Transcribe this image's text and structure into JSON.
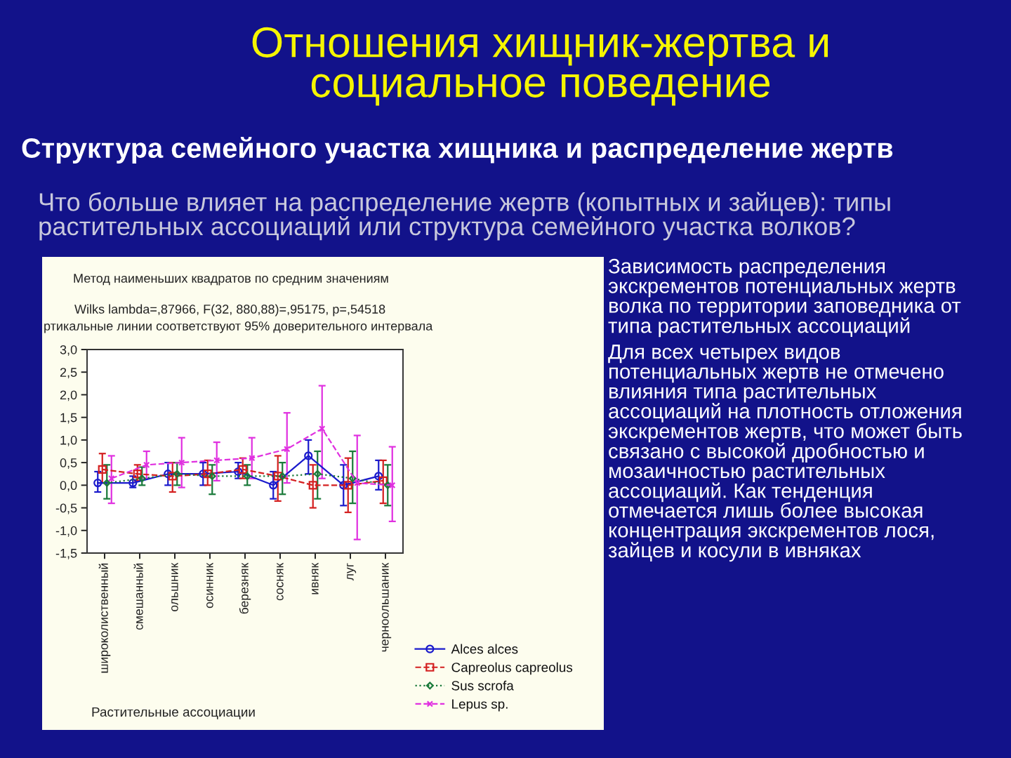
{
  "chart_data": {
    "type": "line",
    "title": "Отношения хищник-жертва и\nсоциальное поведение",
    "subtitle": "Структура семейного участка хищника и распределение жертв",
    "xlabel": "Растительные ассоциации",
    "categories": [
      "широколиственный",
      "смешанный",
      "ольшник",
      "осинник",
      "березняк",
      "сосняк",
      "ивняк",
      "луг",
      "черноольшаник"
    ],
    "ylim": [
      -1.5,
      3.0
    ],
    "yticks": [
      {
        "value": -1.5,
        "label": "-1,5"
      },
      {
        "value": -1.0,
        "label": "-1,0"
      },
      {
        "value": -0.5,
        "label": "-0,5"
      },
      {
        "value": 0.0,
        "label": "0,0"
      },
      {
        "value": 0.5,
        "label": "0,5"
      },
      {
        "value": 1.0,
        "label": "1,0"
      },
      {
        "value": 1.5,
        "label": "1,5"
      },
      {
        "value": 2.0,
        "label": "2,0"
      },
      {
        "value": 2.5,
        "label": "2,5"
      },
      {
        "value": 3.0,
        "label": "3,0"
      }
    ],
    "legend": "bottom right",
    "series": [
      {
        "name": "Alces alces",
        "color": "#1a1acc",
        "marker": "circle",
        "line_style": "solid",
        "values": [
          0.05,
          0.05,
          0.25,
          0.25,
          0.3,
          0.0,
          0.65,
          0.0,
          0.2
        ],
        "errors": [
          [
            -0.15,
            0.3
          ],
          [
            -0.05,
            0.2
          ],
          [
            0.0,
            0.5
          ],
          [
            0.0,
            0.5
          ],
          [
            0.15,
            0.5
          ],
          [
            -0.3,
            0.3
          ],
          [
            0.25,
            1.0
          ],
          [
            -0.45,
            0.45
          ],
          [
            -0.1,
            0.55
          ]
        ]
      },
      {
        "name": "Capreolus capreolus",
        "color": "#d42020",
        "marker": "square",
        "line_style": "dashed",
        "values": [
          0.35,
          0.25,
          0.2,
          0.25,
          0.35,
          0.2,
          0.0,
          0.0,
          0.1
        ],
        "errors": [
          [
            0.05,
            0.7
          ],
          [
            0.1,
            0.45
          ],
          [
            -0.15,
            0.5
          ],
          [
            0.0,
            0.55
          ],
          [
            0.15,
            0.6
          ],
          [
            -0.35,
            0.65
          ],
          [
            -0.5,
            0.45
          ],
          [
            -0.6,
            0.6
          ],
          [
            -0.4,
            0.55
          ]
        ]
      },
      {
        "name": "Sus scrofa",
        "color": "#1a7a3a",
        "marker": "diamond",
        "line_style": "dotted",
        "values": [
          0.05,
          0.15,
          0.25,
          0.2,
          0.2,
          0.2,
          0.25,
          0.15,
          0.0
        ],
        "errors": [
          [
            -0.3,
            0.45
          ],
          [
            0.0,
            0.4
          ],
          [
            0.0,
            0.5
          ],
          [
            -0.2,
            0.45
          ],
          [
            0.0,
            0.45
          ],
          [
            -0.2,
            0.5
          ],
          [
            -0.3,
            0.75
          ],
          [
            -0.4,
            0.75
          ],
          [
            -0.45,
            0.45
          ]
        ]
      },
      {
        "name": "Lepus sp.",
        "color": "#e030e0",
        "marker": "cross",
        "line_style": "dashed",
        "values": [
          0.15,
          0.45,
          0.5,
          0.55,
          0.6,
          0.8,
          1.25,
          0.05,
          0.0
        ],
        "errors": [
          [
            -0.4,
            0.65
          ],
          [
            0.15,
            0.75
          ],
          [
            -0.05,
            1.05
          ],
          [
            0.1,
            0.95
          ],
          [
            0.15,
            1.05
          ],
          [
            0.05,
            1.6
          ],
          [
            0.15,
            2.2
          ],
          [
            -1.2,
            1.1
          ],
          [
            -0.8,
            0.85
          ]
        ]
      }
    ],
    "annotations": [
      "Что больше влияет на распределение жертв (копытных и зайцев): типы\nрастительных ассоциаций или структура семейного участка волков?",
      "Метод наименьших квадратов по средним значениям",
      "Wilks lambda=,87966, F(32, 880,88)=,95175, p=,54518",
      "ртикальные линии соответствуют 95% доверительного интервала",
      "Зависимость распределения\nэкскрементов потенциальных жертв\nволка по территории заповедника от\nтипа растительных ассоциаций",
      "Для всех четырех видов\nпотенциальных жертв не отмечено\nвлияния типа растительных\nассоциаций на плотность отложения\nэкскрементов жертв, что может быть\nсвязано с высокой дробностью и\nмозаичностью растительных\nассоциаций. Как тенденция\nотмечается лишь более высокая\nконцентрация экскрементов лося,\nзайцев и косули в ивняках"
    ]
  }
}
